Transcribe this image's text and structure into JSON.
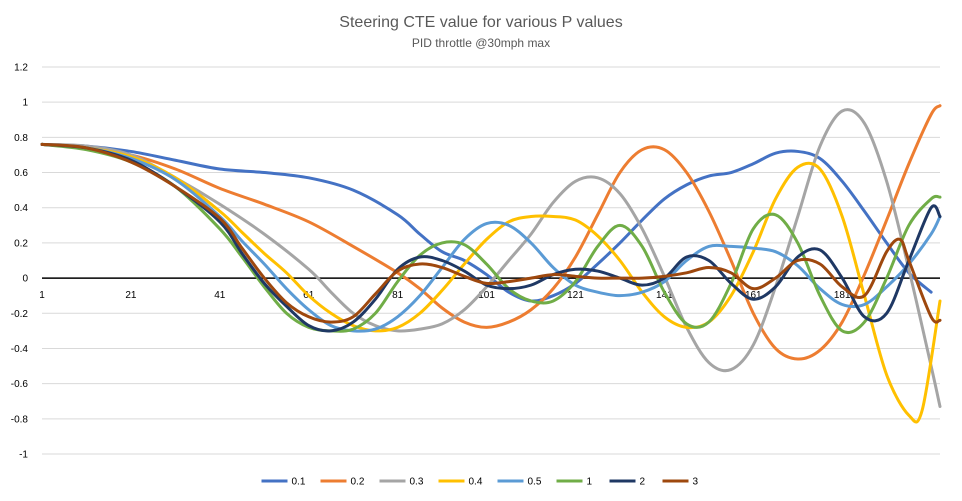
{
  "chart_data": {
    "type": "line",
    "title": "Steering CTE value for various P values",
    "subtitle": "PID throttle @30mph max",
    "xlabel": "",
    "ylabel": "",
    "xlim": [
      1,
      201
    ],
    "ylim": [
      -1,
      1.2
    ],
    "x_ticks": [
      "1",
      "21",
      "41",
      "61",
      "81",
      "101",
      "121",
      "141",
      "161",
      "181"
    ],
    "y_ticks": [
      "1.2",
      "1",
      "0.8",
      "0.6",
      "0.4",
      "0.2",
      "0",
      "-0.2",
      "-0.4",
      "-0.6",
      "-0.8",
      "-1"
    ],
    "grid": true,
    "legend_position": "bottom",
    "series": [
      {
        "name": "0.1",
        "color": "#4472C4",
        "points": [
          [
            1,
            0.76
          ],
          [
            11,
            0.75
          ],
          [
            21,
            0.72
          ],
          [
            31,
            0.67
          ],
          [
            41,
            0.62
          ],
          [
            51,
            0.6
          ],
          [
            61,
            0.57
          ],
          [
            71,
            0.5
          ],
          [
            81,
            0.36
          ],
          [
            86,
            0.25
          ],
          [
            91,
            0.15
          ],
          [
            96,
            0.1
          ],
          [
            101,
            0.02
          ],
          [
            106,
            -0.08
          ],
          [
            111,
            -0.13
          ],
          [
            116,
            -0.1
          ],
          [
            121,
            -0.03
          ],
          [
            126,
            0.08
          ],
          [
            131,
            0.2
          ],
          [
            136,
            0.33
          ],
          [
            141,
            0.45
          ],
          [
            146,
            0.53
          ],
          [
            151,
            0.58
          ],
          [
            156,
            0.6
          ],
          [
            161,
            0.65
          ],
          [
            166,
            0.71
          ],
          [
            171,
            0.72
          ],
          [
            176,
            0.68
          ],
          [
            181,
            0.55
          ],
          [
            186,
            0.38
          ],
          [
            191,
            0.2
          ],
          [
            196,
            0.03
          ],
          [
            201,
            -0.08
          ]
        ]
      },
      {
        "name": "0.2",
        "color": "#ED7D31",
        "points": [
          [
            1,
            0.76
          ],
          [
            11,
            0.74
          ],
          [
            21,
            0.7
          ],
          [
            31,
            0.62
          ],
          [
            41,
            0.51
          ],
          [
            51,
            0.42
          ],
          [
            61,
            0.32
          ],
          [
            71,
            0.18
          ],
          [
            81,
            0.03
          ],
          [
            86,
            -0.06
          ],
          [
            91,
            -0.17
          ],
          [
            96,
            -0.25
          ],
          [
            101,
            -0.28
          ],
          [
            106,
            -0.25
          ],
          [
            111,
            -0.18
          ],
          [
            116,
            -0.06
          ],
          [
            121,
            0.12
          ],
          [
            126,
            0.36
          ],
          [
            131,
            0.6
          ],
          [
            136,
            0.73
          ],
          [
            141,
            0.73
          ],
          [
            146,
            0.6
          ],
          [
            151,
            0.38
          ],
          [
            156,
            0.1
          ],
          [
            161,
            -0.2
          ],
          [
            166,
            -0.4
          ],
          [
            171,
            -0.46
          ],
          [
            176,
            -0.41
          ],
          [
            181,
            -0.25
          ],
          [
            186,
            0.02
          ],
          [
            191,
            0.33
          ],
          [
            196,
            0.65
          ],
          [
            201,
            0.93
          ],
          [
            203,
            0.98
          ]
        ]
      },
      {
        "name": "0.3",
        "color": "#A5A5A5",
        "points": [
          [
            1,
            0.76
          ],
          [
            11,
            0.75
          ],
          [
            21,
            0.7
          ],
          [
            31,
            0.57
          ],
          [
            41,
            0.42
          ],
          [
            51,
            0.25
          ],
          [
            61,
            0.05
          ],
          [
            66,
            -0.08
          ],
          [
            71,
            -0.2
          ],
          [
            76,
            -0.27
          ],
          [
            81,
            -0.3
          ],
          [
            86,
            -0.29
          ],
          [
            91,
            -0.26
          ],
          [
            96,
            -0.18
          ],
          [
            101,
            -0.05
          ],
          [
            106,
            0.1
          ],
          [
            111,
            0.25
          ],
          [
            116,
            0.43
          ],
          [
            121,
            0.55
          ],
          [
            126,
            0.57
          ],
          [
            131,
            0.48
          ],
          [
            136,
            0.28
          ],
          [
            141,
            0.01
          ],
          [
            146,
            -0.28
          ],
          [
            151,
            -0.48
          ],
          [
            156,
            -0.52
          ],
          [
            161,
            -0.38
          ],
          [
            166,
            -0.05
          ],
          [
            171,
            0.35
          ],
          [
            176,
            0.75
          ],
          [
            181,
            0.95
          ],
          [
            186,
            0.88
          ],
          [
            191,
            0.55
          ],
          [
            196,
            0.05
          ],
          [
            201,
            -0.5
          ],
          [
            203,
            -0.73
          ]
        ]
      },
      {
        "name": "0.4",
        "color": "#FFC000",
        "points": [
          [
            1,
            0.76
          ],
          [
            11,
            0.74
          ],
          [
            21,
            0.69
          ],
          [
            31,
            0.57
          ],
          [
            41,
            0.38
          ],
          [
            46,
            0.26
          ],
          [
            51,
            0.14
          ],
          [
            56,
            0.03
          ],
          [
            61,
            -0.1
          ],
          [
            66,
            -0.2
          ],
          [
            71,
            -0.27
          ],
          [
            76,
            -0.3
          ],
          [
            81,
            -0.28
          ],
          [
            86,
            -0.2
          ],
          [
            91,
            -0.07
          ],
          [
            96,
            0.08
          ],
          [
            101,
            0.22
          ],
          [
            106,
            0.32
          ],
          [
            111,
            0.35
          ],
          [
            116,
            0.35
          ],
          [
            121,
            0.33
          ],
          [
            126,
            0.24
          ],
          [
            131,
            0.1
          ],
          [
            136,
            -0.08
          ],
          [
            141,
            -0.22
          ],
          [
            146,
            -0.28
          ],
          [
            151,
            -0.25
          ],
          [
            156,
            -0.1
          ],
          [
            161,
            0.15
          ],
          [
            166,
            0.45
          ],
          [
            171,
            0.63
          ],
          [
            176,
            0.62
          ],
          [
            181,
            0.35
          ],
          [
            186,
            -0.1
          ],
          [
            191,
            -0.55
          ],
          [
            196,
            -0.78
          ],
          [
            199,
            -0.75
          ],
          [
            203,
            -0.13
          ]
        ]
      },
      {
        "name": "0.5",
        "color": "#5B9BD5",
        "points": [
          [
            1,
            0.76
          ],
          [
            11,
            0.74
          ],
          [
            21,
            0.68
          ],
          [
            31,
            0.56
          ],
          [
            41,
            0.35
          ],
          [
            46,
            0.21
          ],
          [
            51,
            0.08
          ],
          [
            56,
            -0.06
          ],
          [
            61,
            -0.18
          ],
          [
            66,
            -0.27
          ],
          [
            71,
            -0.3
          ],
          [
            76,
            -0.29
          ],
          [
            81,
            -0.22
          ],
          [
            86,
            -0.1
          ],
          [
            91,
            0.06
          ],
          [
            96,
            0.22
          ],
          [
            101,
            0.31
          ],
          [
            106,
            0.3
          ],
          [
            111,
            0.2
          ],
          [
            116,
            0.06
          ],
          [
            121,
            -0.04
          ],
          [
            126,
            -0.08
          ],
          [
            131,
            -0.1
          ],
          [
            136,
            -0.08
          ],
          [
            141,
            -0.02
          ],
          [
            146,
            0.1
          ],
          [
            151,
            0.18
          ],
          [
            156,
            0.18
          ],
          [
            161,
            0.17
          ],
          [
            166,
            0.15
          ],
          [
            171,
            0.07
          ],
          [
            176,
            -0.06
          ],
          [
            181,
            -0.15
          ],
          [
            186,
            -0.15
          ],
          [
            191,
            -0.05
          ],
          [
            196,
            0.08
          ],
          [
            201,
            0.25
          ],
          [
            203,
            0.35
          ]
        ]
      },
      {
        "name": "1",
        "color": "#70AD47",
        "points": [
          [
            1,
            0.76
          ],
          [
            11,
            0.73
          ],
          [
            21,
            0.66
          ],
          [
            31,
            0.52
          ],
          [
            41,
            0.28
          ],
          [
            46,
            0.12
          ],
          [
            51,
            -0.05
          ],
          [
            56,
            -0.2
          ],
          [
            61,
            -0.28
          ],
          [
            66,
            -0.3
          ],
          [
            71,
            -0.29
          ],
          [
            76,
            -0.2
          ],
          [
            81,
            -0.02
          ],
          [
            86,
            0.13
          ],
          [
            91,
            0.2
          ],
          [
            96,
            0.19
          ],
          [
            101,
            0.08
          ],
          [
            106,
            -0.06
          ],
          [
            111,
            -0.13
          ],
          [
            116,
            -0.13
          ],
          [
            121,
            -0.02
          ],
          [
            126,
            0.18
          ],
          [
            131,
            0.3
          ],
          [
            136,
            0.18
          ],
          [
            141,
            -0.08
          ],
          [
            146,
            -0.26
          ],
          [
            151,
            -0.25
          ],
          [
            156,
            -0.03
          ],
          [
            161,
            0.28
          ],
          [
            166,
            0.36
          ],
          [
            171,
            0.2
          ],
          [
            176,
            -0.1
          ],
          [
            181,
            -0.3
          ],
          [
            186,
            -0.25
          ],
          [
            191,
            0.0
          ],
          [
            196,
            0.3
          ],
          [
            201,
            0.45
          ],
          [
            203,
            0.46
          ]
        ]
      },
      {
        "name": "2",
        "color": "#1F3864",
        "points": [
          [
            1,
            0.76
          ],
          [
            11,
            0.74
          ],
          [
            21,
            0.67
          ],
          [
            31,
            0.52
          ],
          [
            41,
            0.32
          ],
          [
            46,
            0.14
          ],
          [
            51,
            -0.03
          ],
          [
            56,
            -0.16
          ],
          [
            61,
            -0.27
          ],
          [
            66,
            -0.3
          ],
          [
            71,
            -0.25
          ],
          [
            76,
            -0.12
          ],
          [
            81,
            0.05
          ],
          [
            86,
            0.12
          ],
          [
            91,
            0.1
          ],
          [
            96,
            0.04
          ],
          [
            101,
            -0.04
          ],
          [
            106,
            -0.06
          ],
          [
            111,
            -0.04
          ],
          [
            116,
            0.02
          ],
          [
            121,
            0.05
          ],
          [
            126,
            0.04
          ],
          [
            131,
            0.0
          ],
          [
            136,
            -0.04
          ],
          [
            141,
            0.0
          ],
          [
            146,
            0.12
          ],
          [
            151,
            0.1
          ],
          [
            156,
            -0.03
          ],
          [
            161,
            -0.12
          ],
          [
            166,
            -0.05
          ],
          [
            171,
            0.12
          ],
          [
            176,
            0.16
          ],
          [
            181,
            0.0
          ],
          [
            186,
            -0.22
          ],
          [
            191,
            -0.2
          ],
          [
            196,
            0.1
          ],
          [
            201,
            0.4
          ],
          [
            203,
            0.35
          ]
        ]
      },
      {
        "name": "3",
        "color": "#9E480E",
        "points": [
          [
            1,
            0.76
          ],
          [
            11,
            0.74
          ],
          [
            21,
            0.66
          ],
          [
            31,
            0.52
          ],
          [
            41,
            0.34
          ],
          [
            46,
            0.17
          ],
          [
            51,
            0.0
          ],
          [
            56,
            -0.14
          ],
          [
            61,
            -0.22
          ],
          [
            66,
            -0.25
          ],
          [
            71,
            -0.22
          ],
          [
            76,
            -0.09
          ],
          [
            81,
            0.04
          ],
          [
            86,
            0.08
          ],
          [
            91,
            0.06
          ],
          [
            96,
            0.01
          ],
          [
            101,
            -0.03
          ],
          [
            106,
            -0.02
          ],
          [
            111,
            0.0
          ],
          [
            116,
            0.02
          ],
          [
            121,
            0.01
          ],
          [
            126,
            0.0
          ],
          [
            131,
            0.0
          ],
          [
            136,
            0.0
          ],
          [
            141,
            0.01
          ],
          [
            146,
            0.03
          ],
          [
            151,
            0.06
          ],
          [
            156,
            0.03
          ],
          [
            161,
            -0.06
          ],
          [
            166,
            0.0
          ],
          [
            171,
            0.1
          ],
          [
            176,
            0.08
          ],
          [
            181,
            -0.05
          ],
          [
            186,
            -0.1
          ],
          [
            191,
            0.15
          ],
          [
            194,
            0.22
          ],
          [
            196,
            0.1
          ],
          [
            201,
            -0.22
          ],
          [
            203,
            -0.24
          ]
        ]
      }
    ]
  }
}
